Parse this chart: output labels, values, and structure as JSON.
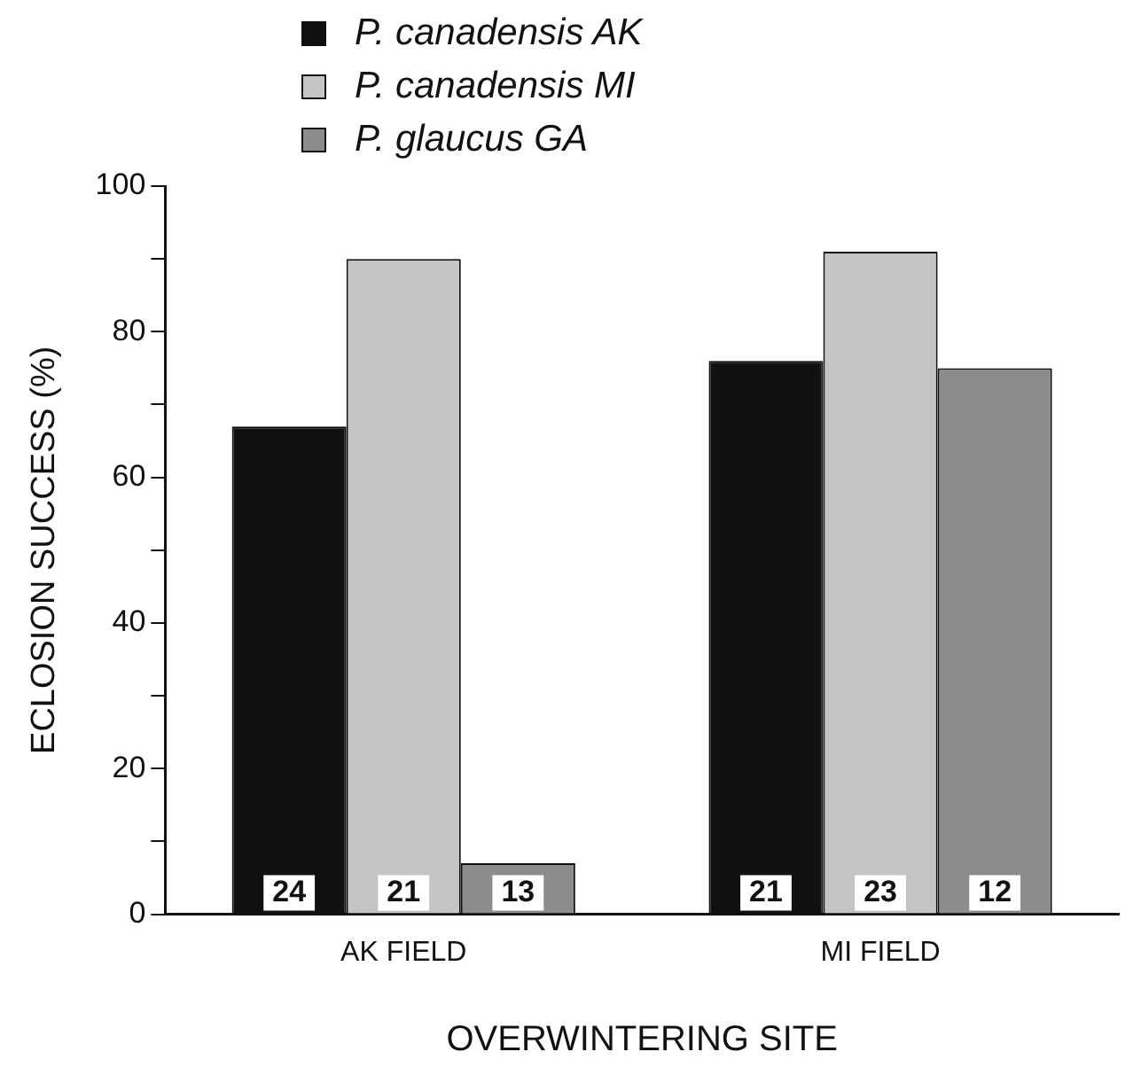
{
  "chart_data": {
    "type": "bar",
    "xlabel": "OVERWINTERING SITE",
    "ylabel": "ECLOSION SUCCESS (%)",
    "categories": [
      "AK FIELD",
      "MI FIELD"
    ],
    "series": [
      {
        "name": "P. canadensis AK",
        "color": "#111111",
        "values": [
          67,
          76
        ]
      },
      {
        "name": "P. canadensis MI",
        "color": "#c4c4c4",
        "values": [
          90,
          91
        ]
      },
      {
        "name": "P. glaucus GA",
        "color": "#8c8c8c",
        "values": [
          7,
          75
        ]
      }
    ],
    "annotations": [
      "24",
      "21",
      "13",
      "21",
      "23",
      "12"
    ],
    "ylim": [
      0,
      100
    ],
    "yticks": [
      0,
      {
        "value": 10,
        "label": null
      },
      20,
      {
        "value": 30,
        "label": null
      },
      40,
      {
        "value": 50,
        "label": null
      },
      60,
      {
        "value": 70,
        "label": null
      },
      80,
      {
        "value": 90,
        "label": null
      },
      100
    ],
    "grid": false,
    "legend": "top left"
  }
}
